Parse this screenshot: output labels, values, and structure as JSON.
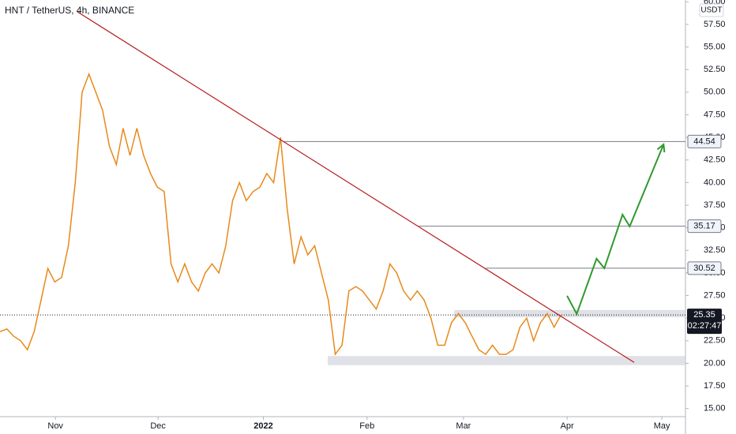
{
  "chart_data": {
    "type": "line",
    "title": "HNT / TetherUS, 4h, BINANCE",
    "currency": "USDT",
    "color": "#e8891a",
    "x": [
      0,
      2,
      4,
      6,
      8,
      10,
      12,
      14,
      16,
      18,
      20,
      22,
      24,
      26,
      28,
      30,
      32,
      34,
      36,
      38,
      40,
      42,
      44,
      46,
      48,
      50,
      52,
      54,
      56,
      58,
      60,
      62,
      64,
      66,
      68,
      70,
      72,
      74,
      76,
      78,
      80,
      82,
      84,
      86,
      88,
      90,
      92,
      94,
      96,
      98,
      100,
      102,
      104,
      106,
      108,
      110,
      112,
      114,
      116,
      118,
      120,
      122,
      124,
      126,
      128,
      130,
      132,
      134,
      136,
      138,
      140,
      142,
      144,
      146,
      148,
      150,
      152,
      154,
      156,
      158,
      160,
      162,
      164
    ],
    "values": [
      23.5,
      23.8,
      23,
      22.5,
      21.5,
      23.5,
      27,
      30.5,
      29,
      29.5,
      33,
      40,
      50,
      52,
      50,
      48,
      44,
      42,
      46,
      43,
      46,
      43,
      41,
      39.5,
      39,
      31,
      29,
      31,
      29,
      28,
      30,
      31,
      30,
      33,
      38,
      40,
      38,
      39,
      39.5,
      41,
      40,
      45,
      37,
      31,
      34,
      32,
      33,
      30,
      27,
      21,
      22,
      28,
      28.5,
      28,
      27,
      26,
      28,
      31,
      30,
      28,
      27,
      28,
      27,
      25,
      22,
      22,
      24.5,
      25.5,
      24.5,
      23,
      21.5,
      21,
      22,
      21,
      21,
      21.5,
      24,
      25,
      22.5,
      24.5,
      25.5,
      24,
      25.35
    ],
    "xlim": [
      0,
      200.4
    ],
    "xticks": [
      {
        "value": 16.2,
        "label": "Nov"
      },
      {
        "value": 46.2,
        "label": "Dec"
      },
      {
        "value": 77,
        "label": "2022"
      },
      {
        "value": 107.3,
        "label": "Feb"
      },
      {
        "value": 135.5,
        "label": "Mar"
      },
      {
        "value": 165.8,
        "label": "Apr"
      },
      {
        "value": 193.5,
        "label": "May"
      }
    ],
    "ylim": [
      14.1,
      60.2
    ],
    "yticks": [
      {
        "value": 15,
        "label": "15.00"
      },
      {
        "value": 17.5,
        "label": "17.50"
      },
      {
        "value": 20,
        "label": "20.00"
      },
      {
        "value": 22.5,
        "label": "22.50"
      },
      {
        "value": 25,
        "label": "25.00"
      },
      {
        "value": 27.5,
        "label": "27.50"
      },
      {
        "value": 30,
        "label": "30.00"
      },
      {
        "value": 32.5,
        "label": "32.50"
      },
      {
        "value": 35,
        "label": "35.00"
      },
      {
        "value": 37.5,
        "label": "37.50"
      },
      {
        "value": 40,
        "label": "40.00"
      },
      {
        "value": 42.5,
        "label": "42.50"
      },
      {
        "value": 45,
        "label": "45.00"
      },
      {
        "value": 47.5,
        "label": "47.50"
      },
      {
        "value": 50,
        "label": "50.00"
      },
      {
        "value": 52.5,
        "label": "52.50"
      },
      {
        "value": 55,
        "label": "55.00"
      },
      {
        "value": 57.5,
        "label": "57.50"
      },
      {
        "value": 60,
        "label": "60.00"
      }
    ],
    "zones": [
      {
        "from": 19.8,
        "to": 20.8,
        "start": 95.8
      },
      {
        "from": 25.1,
        "to": 25.9,
        "start": 132.8
      }
    ],
    "levels": [
      {
        "value": 44.54,
        "start": 83
      },
      {
        "value": 35.17,
        "start": 122.4
      },
      {
        "value": 30.52,
        "start": 142
      }
    ],
    "trendline": {
      "x": [
        22.6,
        185.4
      ],
      "y": [
        58.9,
        20.1
      ],
      "color": "#b71c1c"
    },
    "projection": {
      "x": [
        165.8,
        168.6,
        174.4,
        176.7,
        182,
        184.1,
        194
      ],
      "y": [
        27.47,
        25.47,
        31.57,
        30.52,
        36.45,
        35.15,
        44.22
      ],
      "color": "#2e9a2e"
    },
    "last_price": {
      "value": 25.35,
      "countdown": "02:27:47"
    }
  }
}
